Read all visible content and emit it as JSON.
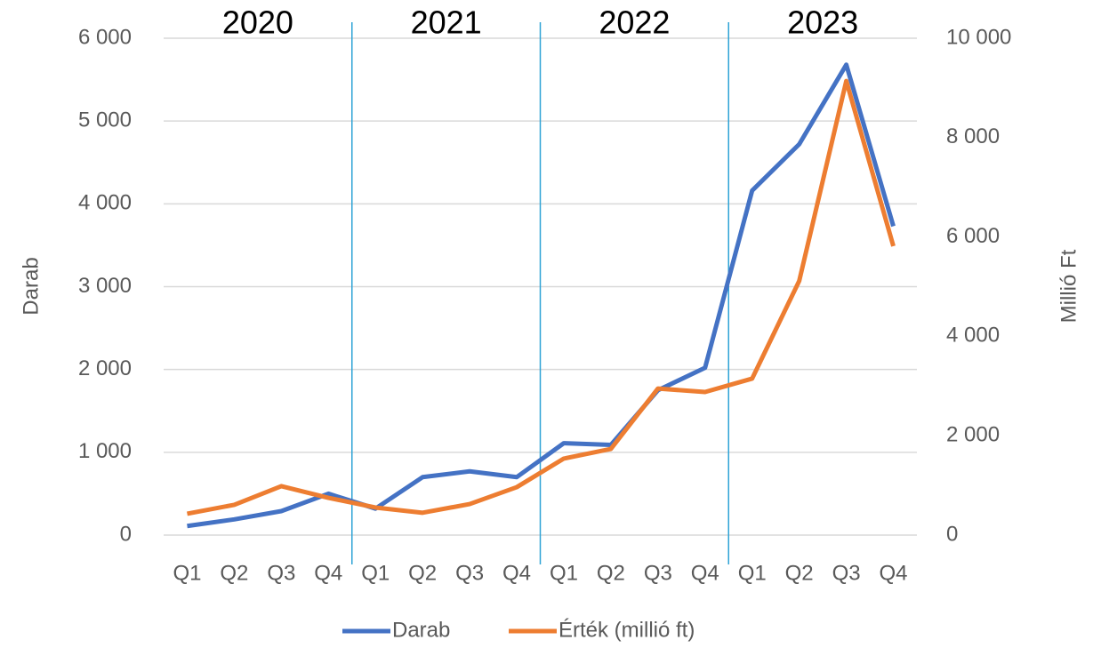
{
  "chart_data": {
    "type": "line",
    "groups": [
      "2020",
      "2021",
      "2022",
      "2023"
    ],
    "categories": [
      "Q1",
      "Q2",
      "Q3",
      "Q4",
      "Q1",
      "Q2",
      "Q3",
      "Q4",
      "Q1",
      "Q2",
      "Q3",
      "Q4",
      "Q1",
      "Q2",
      "Q3",
      "Q4"
    ],
    "series": [
      {
        "name": "Darab",
        "color": "#4472c4",
        "values": [
          110,
          190,
          290,
          500,
          320,
          700,
          770,
          700,
          1110,
          1090,
          1750,
          2020,
          4160,
          4720,
          5680,
          3730
        ]
      },
      {
        "name": "Érték (millió ft)",
        "color": "#ed7d31",
        "axis": "y2",
        "values": [
          430,
          610,
          985,
          750,
          555,
          450,
          625,
          965,
          1540,
          1735,
          2950,
          2880,
          3150,
          5115,
          9140,
          5815
        ]
      }
    ],
    "ylabel": "Darab",
    "y2label": "Millió Ft",
    "ylim": [
      0,
      6000
    ],
    "yticks": [
      0,
      {
        "value": 1000,
        "label": "1 000"
      },
      {
        "value": 2000,
        "label": "2 000"
      },
      {
        "value": 3000,
        "label": "3 000"
      },
      {
        "value": 4000,
        "label": "4 000"
      },
      {
        "value": 5000,
        "label": "5 000"
      },
      {
        "value": 6000,
        "label": "6 000"
      }
    ],
    "y2lim": [
      0,
      10000
    ],
    "y2ticks": [
      0,
      {
        "value": 2000,
        "label": "2 000"
      },
      {
        "value": 4000,
        "label": "4 000"
      },
      {
        "value": 6000,
        "label": "6 000"
      },
      {
        "value": 8000,
        "label": "8 000"
      },
      {
        "value": 10000,
        "label": "10 000"
      }
    ],
    "grid": true,
    "legend": "bottom"
  }
}
